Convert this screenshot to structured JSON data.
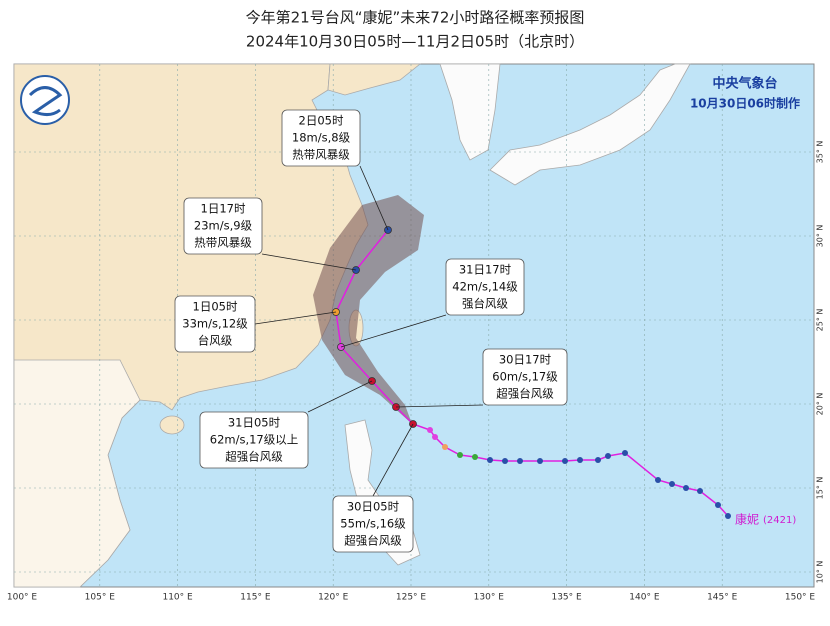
{
  "header": {
    "title": "今年第21号台风“康妮”未来72小时路径概率预报图",
    "subtitle": "2024年10月30日05时—11月2日05时（北京时）"
  },
  "agency": {
    "name": "中央气象台",
    "issued": "10月30日06时制作"
  },
  "typhoon": {
    "name": "康妮",
    "code": "(2421)"
  },
  "callouts": [
    {
      "time": "2日05时",
      "wind": "18m/s,8级",
      "grade": "热带风暴级"
    },
    {
      "time": "1日17时",
      "wind": "23m/s,9级",
      "grade": "热带风暴级"
    },
    {
      "time": "1日05时",
      "wind": "33m/s,12级",
      "grade": "台风级"
    },
    {
      "time": "31日17时",
      "wind": "42m/s,14级",
      "grade": "强台风级"
    },
    {
      "time": "30日17时",
      "wind": "60m/s,17级",
      "grade": "超强台风级"
    },
    {
      "time": "31日05时",
      "wind": "62m/s,17级以上",
      "grade": "超强台风级"
    },
    {
      "time": "30日05时",
      "wind": "55m/s,16级",
      "grade": "超强台风级"
    }
  ],
  "longitude_labels": [
    "100° E",
    "105° E",
    "110° E",
    "115° E",
    "120° E",
    "125° E",
    "130° E",
    "135° E",
    "140° E",
    "145° E",
    "150° E"
  ],
  "latitude_labels": [
    "35° N",
    "30° N",
    "25° N",
    "20° N",
    "15° N",
    "10° N"
  ]
}
